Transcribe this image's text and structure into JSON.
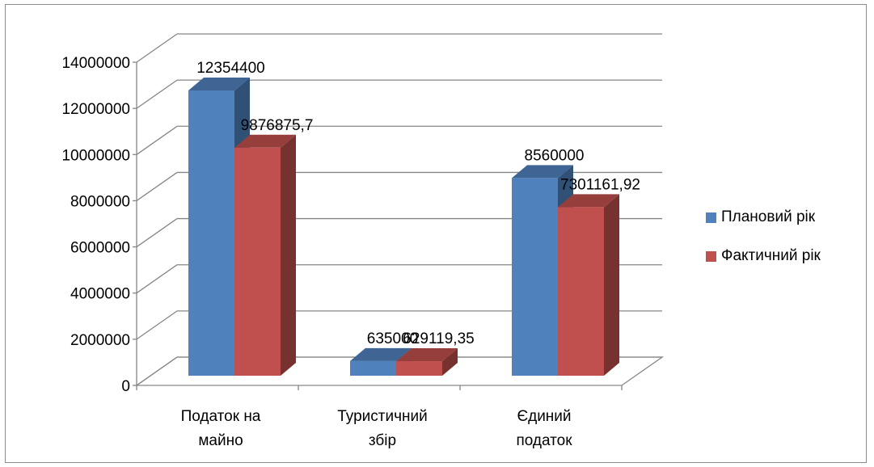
{
  "chart_data": {
    "type": "bar",
    "categories": [
      [
        "Податок на",
        "майно"
      ],
      [
        "Туристичний",
        "збір"
      ],
      [
        "Єдиний",
        "податок"
      ]
    ],
    "series": [
      {
        "name": "Плановий рік",
        "values": [
          12354400,
          635000,
          8560000
        ],
        "labels": [
          "12354400",
          "635000",
          "8560000"
        ],
        "color": "#4F81BD"
      },
      {
        "name": "Фактичний рік",
        "values": [
          9876875.7,
          629119.35,
          7301161.92
        ],
        "labels": [
          "9876875,7",
          "629119,35",
          "7301161,92"
        ],
        "color": "#C0504D"
      }
    ],
    "ylim": [
      0,
      14000000
    ],
    "yticks": [
      "0",
      "2000000",
      "4000000",
      "6000000",
      "8000000",
      "10000000",
      "12000000",
      "14000000"
    ],
    "grid": true,
    "legend_position": "right",
    "three_d": true
  }
}
